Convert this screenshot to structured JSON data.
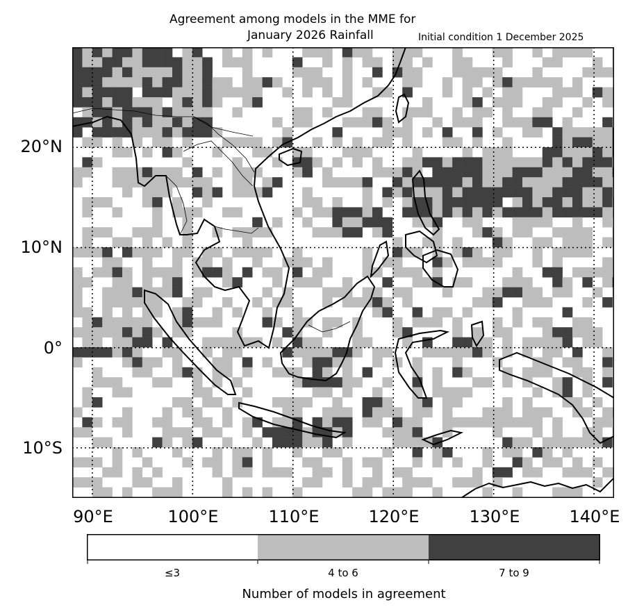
{
  "title": {
    "line1": "Agreement among models in the MME for",
    "line2": "January 2026  Rainfall",
    "subtitle": "Initial condition 1 December 2025"
  },
  "map": {
    "lat_labels": [
      "20°N",
      "10°N",
      "0°",
      "10°S"
    ],
    "lon_labels": [
      "90°E",
      "100°E",
      "110°E",
      "120°E",
      "130°E",
      "140°E"
    ],
    "extent": {
      "lon_min": 88,
      "lon_max": 142,
      "lat_min": -15,
      "lat_max": 30
    },
    "gridlines": {
      "lons": [
        90,
        100,
        110,
        120,
        130,
        140
      ],
      "lats": [
        20,
        10,
        0,
        -10
      ],
      "style": "dotted"
    }
  },
  "legend": {
    "title": "Number of models in agreement",
    "categories": [
      {
        "label": "≤3",
        "color": "#ffffff"
      },
      {
        "label": "4 to 6",
        "color": "#bdbdbd"
      },
      {
        "label": "7 to 9",
        "color": "#404040"
      }
    ]
  }
}
